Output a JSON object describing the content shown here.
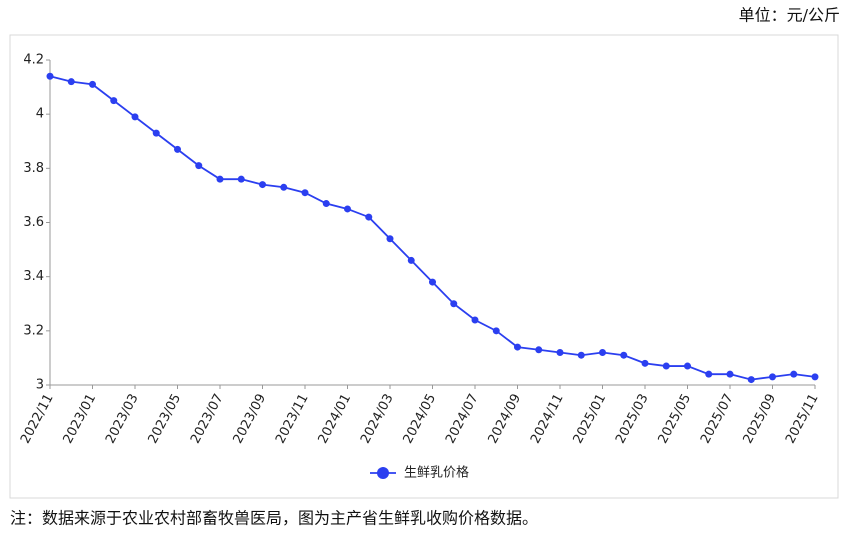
{
  "chart_data": {
    "type": "line",
    "unit_label": "单位：元/公斤",
    "note": "注：数据来源于农业农村部畜牧兽医局，图为主产省生鲜乳收购价格数据。",
    "categories": [
      "2022/11",
      null,
      "2023/01",
      null,
      "2023/03",
      null,
      "2023/05",
      null,
      "2023/07",
      null,
      "2023/09",
      null,
      "2023/11",
      null,
      "2024/01",
      null,
      "2024/03",
      null,
      "2024/05",
      null,
      "2024/07",
      null,
      "2024/09",
      null,
      "2024/11",
      null,
      "2025/01",
      null,
      "2025/03",
      null,
      "2025/05",
      null,
      "2025/07",
      null,
      "2025/09",
      null,
      "2025/11"
    ],
    "series": [
      {
        "name": "生鲜乳价格",
        "color": "#2b3ff0",
        "values": [
          4.14,
          4.12,
          4.11,
          4.05,
          3.99,
          3.93,
          3.87,
          3.81,
          3.76,
          3.76,
          3.74,
          3.73,
          3.71,
          3.67,
          3.65,
          3.62,
          3.54,
          3.46,
          3.38,
          3.3,
          3.24,
          3.2,
          3.14,
          3.13,
          3.12,
          3.11,
          3.12,
          3.11,
          3.08,
          3.07,
          3.07,
          3.04,
          3.04,
          3.02,
          3.03,
          3.04,
          3.03
        ]
      }
    ],
    "ylim": [
      3,
      4.2
    ],
    "yticks": [
      3,
      3.2,
      3.4,
      3.6,
      3.8,
      4,
      4.2
    ],
    "grid": false
  }
}
